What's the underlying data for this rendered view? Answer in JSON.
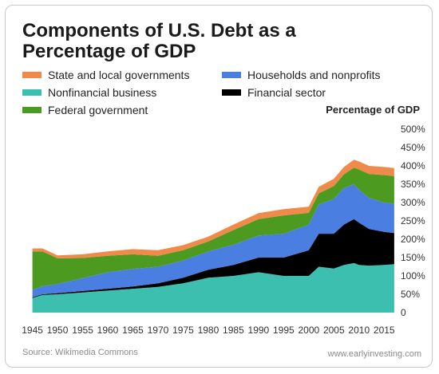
{
  "header": {
    "title": "Components of U.S. Debt as a Percentage of GDP"
  },
  "legend": [
    {
      "label": "State and local governments",
      "color": "#f08a4b"
    },
    {
      "label": "Households and nonprofits",
      "color": "#4a7ee0"
    },
    {
      "label": "Nonfinancial business",
      "color": "#3dbfb0"
    },
    {
      "label": "Financial sector",
      "color": "#000000"
    },
    {
      "label": "Federal government",
      "color": "#4c9a1f"
    }
  ],
  "footer": {
    "source": "Source: Wikimedia Commons",
    "site": "www.earlyinvesting.com"
  },
  "chart_data": {
    "type": "area",
    "title": "Components of U.S. Debt as a Percentage of GDP",
    "ylabel": "Percentage of GDP",
    "xlabel": "",
    "stacked": true,
    "grid": false,
    "legend_position": "top",
    "ylim": [
      0,
      500
    ],
    "y_ticks": [
      "0",
      "50%",
      "100%",
      "150%",
      "200%",
      "250%",
      "300%",
      "350%",
      "400%",
      "450%",
      "500%"
    ],
    "x_ticks": [
      "1945",
      "1950",
      "1955",
      "1960",
      "1965",
      "1970",
      "1975",
      "1980",
      "1985",
      "1990",
      "1995",
      "2000",
      "2005",
      "2010",
      "2015"
    ],
    "x": [
      1945,
      1947,
      1950,
      1955,
      1960,
      1965,
      1970,
      1975,
      1980,
      1985,
      1990,
      1995,
      2000,
      2002,
      2005,
      2007,
      2009,
      2010,
      2012,
      2015,
      2017
    ],
    "series": [
      {
        "name": "Nonfinancial business",
        "color": "#3dbfb0",
        "values": [
          40,
          48,
          50,
          55,
          60,
          65,
          70,
          80,
          95,
          100,
          110,
          100,
          100,
          125,
          120,
          130,
          135,
          130,
          128,
          130,
          132
        ]
      },
      {
        "name": "Financial sector",
        "color": "#000000",
        "values": [
          2,
          2,
          3,
          4,
          5,
          6,
          10,
          15,
          22,
          30,
          40,
          50,
          70,
          90,
          95,
          110,
          120,
          115,
          100,
          90,
          85
        ]
      },
      {
        "name": "Households and nonprofits",
        "color": "#4a7ee0",
        "values": [
          20,
          22,
          25,
          35,
          45,
          48,
          45,
          47,
          50,
          55,
          60,
          65,
          70,
          80,
          95,
          100,
          95,
          90,
          85,
          80,
          80
        ]
      },
      {
        "name": "Federal government",
        "color": "#4c9a1f",
        "values": [
          105,
          95,
          70,
          55,
          45,
          40,
          30,
          28,
          27,
          40,
          45,
          50,
          32,
          30,
          35,
          37,
          45,
          55,
          65,
          75,
          75
        ]
      },
      {
        "name": "State and local governments",
        "color": "#f08a4b",
        "values": [
          8,
          8,
          8,
          10,
          12,
          14,
          15,
          14,
          13,
          15,
          16,
          17,
          17,
          18,
          20,
          20,
          22,
          22,
          22,
          22,
          22
        ]
      }
    ]
  }
}
